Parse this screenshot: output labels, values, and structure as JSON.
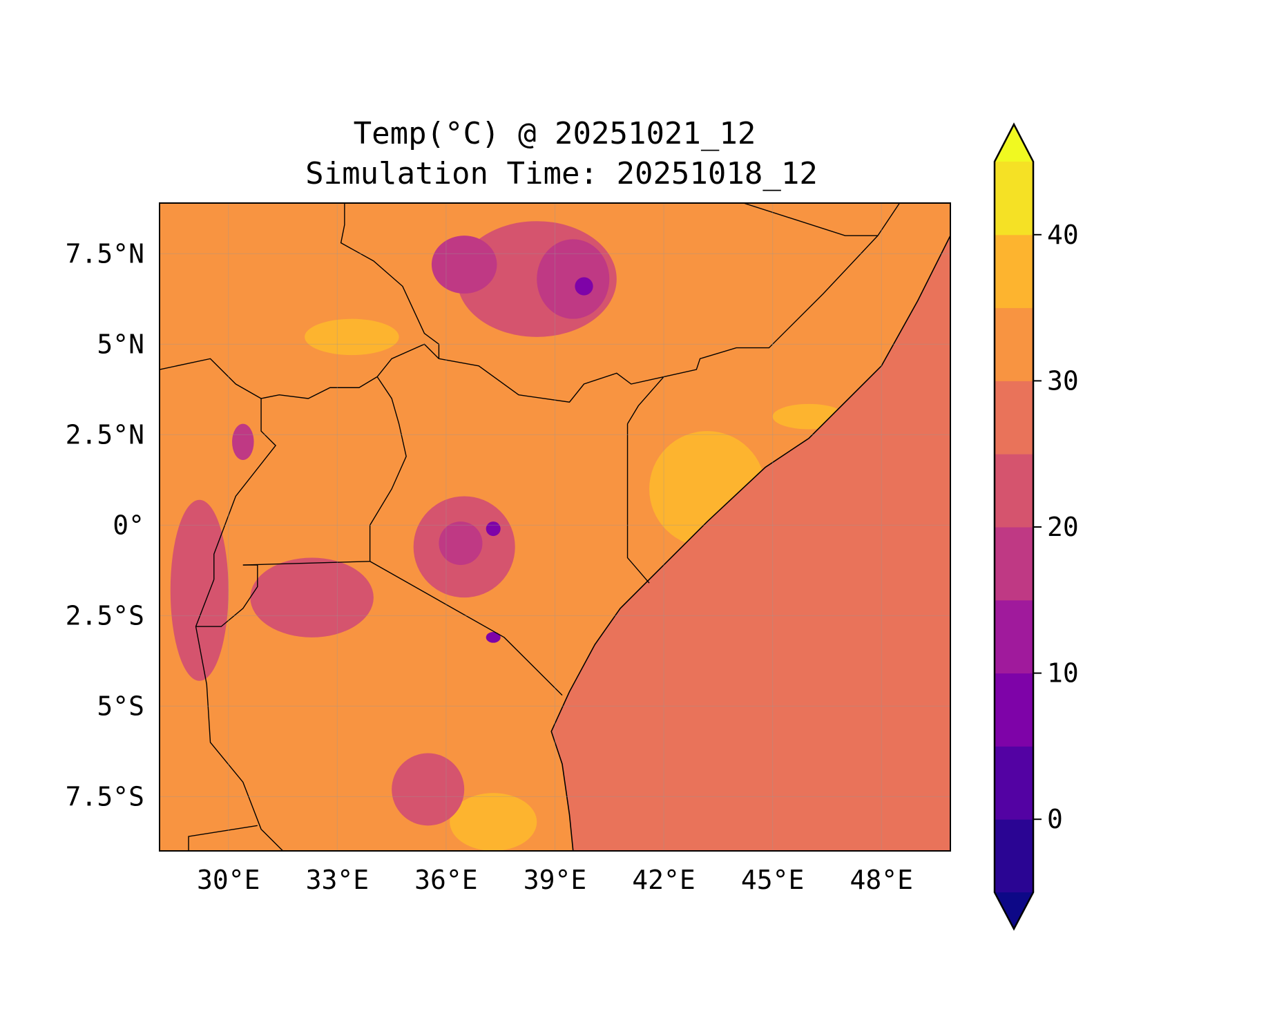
{
  "chart_data": {
    "type": "heatmap",
    "title_line1": "Temp(°C) @ 20251021_12",
    "title_line2": "Simulation Time: 20251018_12",
    "xlim": [
      28.1,
      49.9
    ],
    "ylim": [
      -9.0,
      8.9
    ],
    "x_ticks": [
      30,
      33,
      36,
      39,
      42,
      45,
      48
    ],
    "x_tick_labels": [
      "30°E",
      "33°E",
      "36°E",
      "39°E",
      "42°E",
      "45°E",
      "48°E"
    ],
    "y_ticks": [
      7.5,
      5,
      2.5,
      0,
      -2.5,
      -5,
      -7.5
    ],
    "y_tick_labels": [
      "7.5°N",
      "5°N",
      "2.5°N",
      "0°",
      "2.5°S",
      "5°S",
      "7.5°S"
    ],
    "grid": true,
    "colorbar": {
      "placement": "right",
      "extend": "both",
      "levels": [
        -5,
        0,
        5,
        10,
        15,
        20,
        25,
        30,
        35,
        40,
        45
      ],
      "colors": [
        "#2a0593",
        "#5302a3",
        "#7e03a8",
        "#a01a9c",
        "#bf3984",
        "#d5546e",
        "#e9735a",
        "#f89441",
        "#fdb42f",
        "#f5e125"
      ],
      "under_color": "#0d0887",
      "over_color": "#f0f921",
      "ticks": [
        0,
        10,
        20,
        30,
        40
      ],
      "tick_labels": [
        "0",
        "10",
        "20",
        "30",
        "40"
      ]
    },
    "land_value_c": 32,
    "ocean_value_c": 28,
    "regions": [
      {
        "value": 37,
        "center": [
          43.2,
          1.0
        ],
        "radius": [
          1.6,
          1.6
        ]
      },
      {
        "value": 37,
        "center": [
          33.4,
          5.2
        ],
        "radius": [
          1.3,
          0.5
        ]
      },
      {
        "value": 37,
        "center": [
          37.3,
          -8.2
        ],
        "radius": [
          1.2,
          0.8
        ]
      },
      {
        "value": 37,
        "center": [
          46.0,
          3.0
        ],
        "radius": [
          1.0,
          0.35
        ]
      },
      {
        "value": 22,
        "center": [
          32.3,
          -2.0
        ],
        "radius": [
          1.7,
          1.1
        ]
      },
      {
        "value": 22,
        "center": [
          38.5,
          6.8
        ],
        "radius": [
          2.2,
          1.6
        ]
      },
      {
        "value": 22,
        "center": [
          36.5,
          -0.6
        ],
        "radius": [
          1.4,
          1.4
        ]
      },
      {
        "value": 22,
        "center": [
          29.2,
          -1.8
        ],
        "radius": [
          0.8,
          2.5
        ]
      },
      {
        "value": 22,
        "center": [
          35.5,
          -7.3
        ],
        "radius": [
          1.0,
          1.0
        ]
      },
      {
        "value": 17,
        "center": [
          39.5,
          6.8
        ],
        "radius": [
          1.0,
          1.1
        ]
      },
      {
        "value": 17,
        "center": [
          36.5,
          7.2
        ],
        "radius": [
          0.9,
          0.8
        ]
      },
      {
        "value": 17,
        "center": [
          30.4,
          2.3
        ],
        "radius": [
          0.3,
          0.5
        ]
      },
      {
        "value": 17,
        "center": [
          36.4,
          -0.5
        ],
        "radius": [
          0.6,
          0.6
        ]
      },
      {
        "value": 7,
        "center": [
          39.8,
          6.6
        ],
        "radius": [
          0.25,
          0.25
        ]
      },
      {
        "value": 7,
        "center": [
          37.3,
          -0.1
        ],
        "radius": [
          0.2,
          0.2
        ]
      },
      {
        "value": 7,
        "center": [
          37.3,
          -3.1
        ],
        "radius": [
          0.2,
          0.15
        ]
      }
    ],
    "coastline": [
      [
        49.9,
        8.0
      ],
      [
        49.0,
        6.2
      ],
      [
        48.0,
        4.4
      ],
      [
        46.0,
        2.4
      ],
      [
        44.8,
        1.6
      ],
      [
        43.2,
        0.1
      ],
      [
        41.6,
        -1.5
      ],
      [
        40.8,
        -2.3
      ],
      [
        40.1,
        -3.3
      ],
      [
        39.4,
        -4.6
      ],
      [
        38.9,
        -5.7
      ],
      [
        39.2,
        -6.6
      ],
      [
        39.4,
        -8.0
      ],
      [
        39.5,
        -9.0
      ]
    ],
    "borders": [
      [
        [
          41.0,
          2.8
        ],
        [
          41.0,
          -0.9
        ],
        [
          41.6,
          -1.6
        ]
      ],
      [
        [
          33.9,
          -1.0
        ],
        [
          37.6,
          -3.1
        ],
        [
          39.2,
          -4.7
        ]
      ],
      [
        [
          30.4,
          -1.1
        ],
        [
          33.9,
          -1.0
        ]
      ],
      [
        [
          35.8,
          4.6
        ],
        [
          36.9,
          4.4
        ],
        [
          38.0,
          3.6
        ],
        [
          39.4,
          3.4
        ],
        [
          39.8,
          3.9
        ],
        [
          40.7,
          4.2
        ],
        [
          41.1,
          3.9
        ],
        [
          42.0,
          4.1
        ],
        [
          42.9,
          4.3
        ],
        [
          43.0,
          4.6
        ],
        [
          44.0,
          4.9
        ],
        [
          44.9,
          4.9
        ],
        [
          46.4,
          6.4
        ],
        [
          47.9,
          8.0
        ],
        [
          48.5,
          8.9
        ]
      ],
      [
        [
          44.2,
          8.9
        ],
        [
          47.0,
          8.0
        ],
        [
          47.9,
          8.0
        ]
      ],
      [
        [
          41.0,
          2.8
        ],
        [
          41.3,
          3.3
        ],
        [
          42.0,
          4.1
        ]
      ],
      [
        [
          33.9,
          -1.0
        ],
        [
          33.9,
          0.0
        ],
        [
          34.5,
          1.0
        ],
        [
          34.9,
          1.9
        ],
        [
          34.7,
          2.8
        ],
        [
          34.5,
          3.5
        ],
        [
          34.1,
          4.1
        ]
      ],
      [
        [
          34.1,
          4.1
        ],
        [
          33.6,
          3.8
        ],
        [
          32.8,
          3.8
        ],
        [
          32.2,
          3.5
        ],
        [
          31.4,
          3.6
        ],
        [
          30.9,
          3.5
        ],
        [
          30.9,
          2.6
        ],
        [
          31.3,
          2.2
        ],
        [
          30.2,
          0.8
        ],
        [
          29.6,
          -0.8
        ],
        [
          29.6,
          -1.5
        ]
      ],
      [
        [
          33.2,
          8.9
        ],
        [
          33.2,
          8.3
        ],
        [
          33.1,
          7.8
        ],
        [
          34.0,
          7.3
        ],
        [
          34.8,
          6.6
        ],
        [
          35.4,
          5.3
        ],
        [
          35.8,
          5.0
        ],
        [
          35.8,
          4.6
        ]
      ],
      [
        [
          34.1,
          4.1
        ],
        [
          34.5,
          4.6
        ],
        [
          35.4,
          5.0
        ],
        [
          35.8,
          4.6
        ]
      ],
      [
        [
          28.1,
          4.3
        ],
        [
          29.5,
          4.6
        ],
        [
          30.2,
          3.9
        ],
        [
          30.9,
          3.5
        ]
      ],
      [
        [
          29.6,
          -1.5
        ],
        [
          29.1,
          -2.8
        ],
        [
          29.4,
          -4.4
        ],
        [
          29.5,
          -6.0
        ],
        [
          30.4,
          -7.1
        ],
        [
          30.9,
          -8.4
        ],
        [
          31.5,
          -9.0
        ]
      ],
      [
        [
          29.1,
          -2.8
        ],
        [
          29.8,
          -2.8
        ],
        [
          30.4,
          -2.3
        ],
        [
          30.8,
          -1.7
        ],
        [
          30.8,
          -1.1
        ],
        [
          30.4,
          -1.1
        ]
      ],
      [
        [
          28.9,
          -9.0
        ],
        [
          28.9,
          -8.6
        ],
        [
          30.8,
          -8.3
        ]
      ]
    ]
  }
}
